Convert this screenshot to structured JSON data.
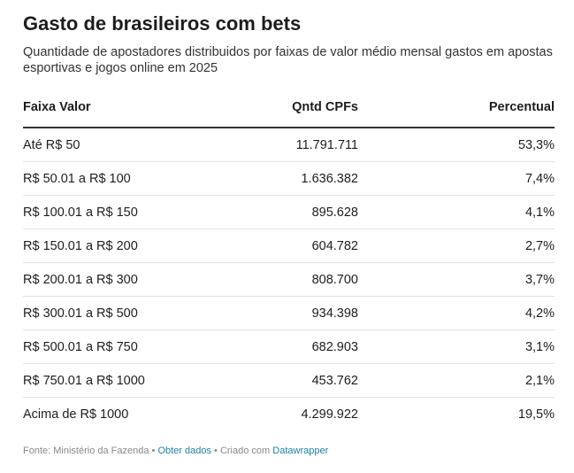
{
  "title": "Gasto de brasileiros com bets",
  "subtitle": "Quantidade de apostadores distribuidos por faixas de valor médio mensal gastos em apostas esportivas e jogos online em 2025",
  "table": {
    "headers": [
      "Faixa Valor",
      "Qntd CPFs",
      "Percentual"
    ],
    "rows": [
      [
        "Até R$ 50",
        "11.791.711",
        "53,3%"
      ],
      [
        "R$ 50.01 a R$ 100",
        "1.636.382",
        "7,4%"
      ],
      [
        "R$ 100.01 a R$ 150",
        "895.628",
        "4,1%"
      ],
      [
        "R$ 150.01 a R$ 200",
        "604.782",
        "2,7%"
      ],
      [
        "R$ 200.01 a R$ 300",
        "808.700",
        "3,7%"
      ],
      [
        "R$ 300.01 a R$ 500",
        "934.398",
        "4,2%"
      ],
      [
        "R$ 500.01 a R$ 750",
        "682.903",
        "3,1%"
      ],
      [
        "R$ 750.01 a R$ 1000",
        "453.762",
        "2,1%"
      ],
      [
        "Acima de R$ 1000",
        "4.299.922",
        "19,5%"
      ]
    ]
  },
  "footer": {
    "source": "Fonte: Ministério da Fazenda",
    "separator": " • ",
    "get_data": "Obter dados",
    "created_with": "Criado com",
    "tool": "Datawrapper"
  },
  "colors": {
    "text": "#1d1d1d",
    "link": "#1d81a2",
    "rule": "#333333",
    "row_divider": "#e2e2e2"
  },
  "chart_data": {
    "type": "table",
    "title": "Gasto de brasileiros com bets",
    "subtitle": "Quantidade de apostadores distribuidos por faixas de valor médio mensal gastos em apostas esportivas e jogos online em 2025",
    "columns": [
      "Faixa Valor",
      "Qntd CPFs",
      "Percentual"
    ],
    "categories": [
      "Até R$ 50",
      "R$ 50.01 a R$ 100",
      "R$ 100.01 a R$ 150",
      "R$ 150.01 a R$ 200",
      "R$ 200.01 a R$ 300",
      "R$ 300.01 a R$ 500",
      "R$ 500.01 a R$ 750",
      "R$ 750.01 a R$ 1000",
      "Acima de R$ 1000"
    ],
    "series": [
      {
        "name": "Qntd CPFs",
        "values": [
          11791711,
          1636382,
          895628,
          604782,
          808700,
          934398,
          682903,
          453762,
          4299922
        ]
      },
      {
        "name": "Percentual",
        "values": [
          53.3,
          7.4,
          4.1,
          2.7,
          3.7,
          4.2,
          3.1,
          2.1,
          19.5
        ]
      }
    ]
  }
}
